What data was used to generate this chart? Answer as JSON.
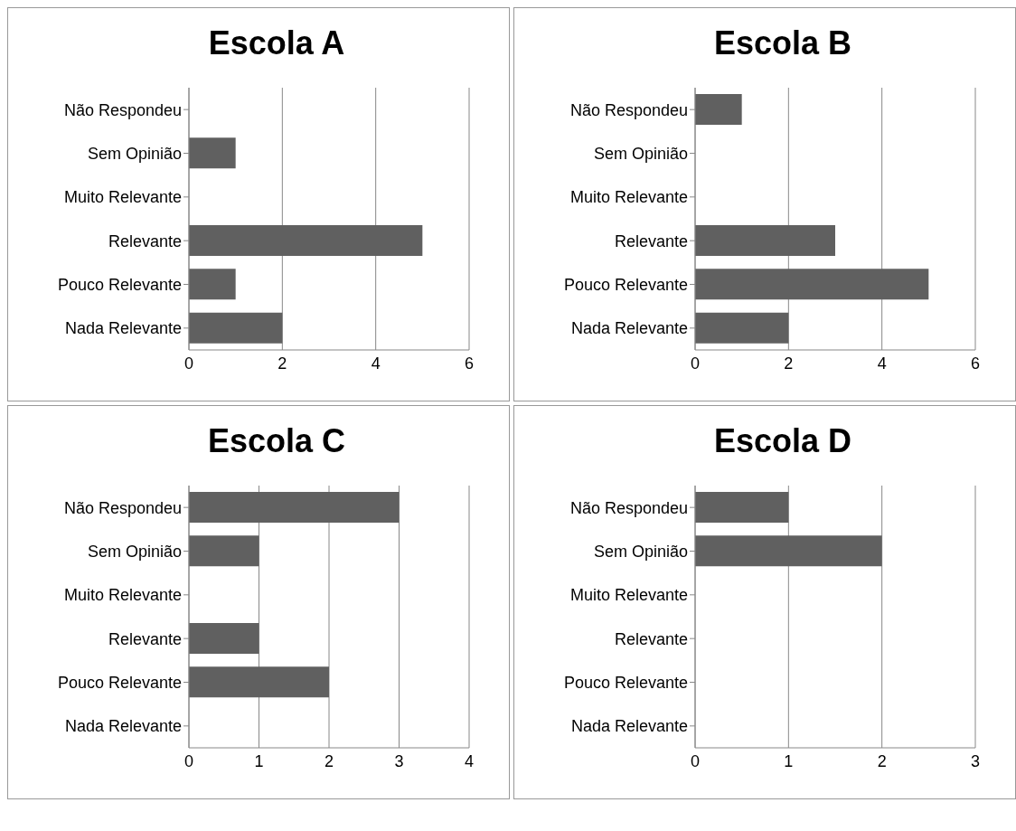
{
  "chart_data": [
    {
      "type": "bar",
      "orientation": "horizontal",
      "title": "Escola A",
      "categories": [
        "Não Respondeu",
        "Sem Opinião",
        "Muito Relevante",
        "Relevante",
        "Pouco Relevante",
        "Nada Relevante"
      ],
      "values": [
        0,
        1,
        0,
        5,
        1,
        2
      ],
      "color": "#606060",
      "xlim": [
        0,
        6
      ],
      "xticks": [
        0,
        2,
        4,
        6
      ],
      "grid": "x"
    },
    {
      "type": "bar",
      "orientation": "horizontal",
      "title": "Escola B",
      "categories": [
        "Não Respondeu",
        "Sem Opinião",
        "Muito Relevante",
        "Relevante",
        "Pouco Relevante",
        "Nada Relevante"
      ],
      "values": [
        1,
        0,
        0,
        3,
        5,
        2
      ],
      "color": "#606060",
      "xlim": [
        0,
        6
      ],
      "xticks": [
        0,
        2,
        4,
        6
      ],
      "grid": "x"
    },
    {
      "type": "bar",
      "orientation": "horizontal",
      "title": "Escola C",
      "categories": [
        "Não Respondeu",
        "Sem Opinião",
        "Muito Relevante",
        "Relevante",
        "Pouco Relevante",
        "Nada Relevante"
      ],
      "values": [
        3,
        1,
        0,
        1,
        2,
        0
      ],
      "color": "#606060",
      "xlim": [
        0,
        4
      ],
      "xticks": [
        0,
        1,
        2,
        3,
        4
      ],
      "grid": "x"
    },
    {
      "type": "bar",
      "orientation": "horizontal",
      "title": "Escola D",
      "categories": [
        "Não Respondeu",
        "Sem Opinião",
        "Muito Relevante",
        "Relevante",
        "Pouco Relevante",
        "Nada Relevante"
      ],
      "values": [
        1,
        2,
        0,
        0,
        0,
        0
      ],
      "color": "#606060",
      "xlim": [
        0,
        3
      ],
      "xticks": [
        0,
        1,
        2,
        3
      ],
      "grid": "x"
    }
  ]
}
